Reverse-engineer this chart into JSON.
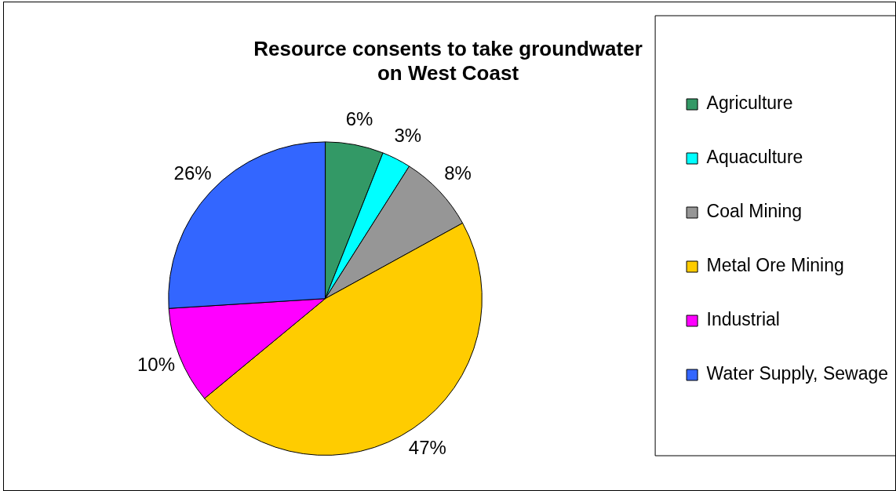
{
  "chart_data": {
    "type": "pie",
    "title": "Resource consents to take groundwater\non West Coast",
    "categories": [
      "Agriculture",
      "Aquaculture",
      "Coal Mining",
      "Metal Ore Mining",
      "Industrial",
      "Water Supply, Sewage"
    ],
    "values": [
      6,
      3,
      8,
      47,
      10,
      26
    ],
    "colors": [
      "#339966",
      "#00ffff",
      "#969696",
      "#ffcc00",
      "#ff00ff",
      "#3366ff"
    ],
    "value_labels": [
      "6%",
      "3%",
      "8%",
      "47%",
      "10%",
      "26%"
    ],
    "legend": "right"
  }
}
